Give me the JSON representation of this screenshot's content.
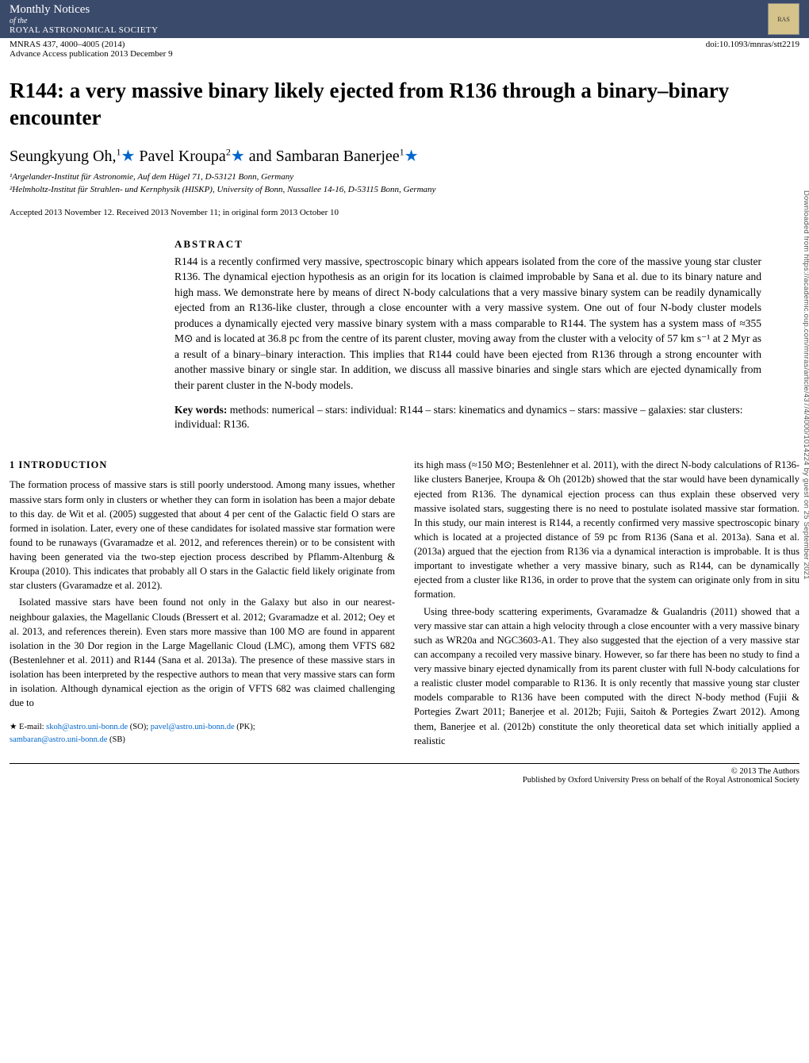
{
  "header": {
    "journal_name": "Monthly Notices",
    "journal_of": "of the",
    "journal_society": "ROYAL ASTRONOMICAL SOCIETY",
    "volume_line": "MNRAS 437, 4000–4005 (2014)",
    "advance_line": "Advance Access publication 2013 December 9",
    "doi": "doi:10.1093/mnras/stt2219",
    "logo_alt": "RAS"
  },
  "title": "R144: a very massive binary likely ejected from R136 through a binary–binary encounter",
  "authors_html": "Seungkyung Oh,",
  "author1": "Seungkyung Oh,",
  "author1_sup": "1",
  "author2": " Pavel Kroupa",
  "author2_sup": "2",
  "author3": " and Sambaran Banerjee",
  "author3_sup": "1",
  "star": "★",
  "affil1": "¹Argelander-Institut für Astronomie, Auf dem Hügel 71, D-53121 Bonn, Germany",
  "affil2": "²Helmholtz-Institut für Strahlen- und Kernphysik (HISKP), University of Bonn, Nussallee 14-16, D-53115 Bonn, Germany",
  "dates": "Accepted 2013 November 12. Received 2013 November 11; in original form 2013 October 10",
  "abstract_head": "ABSTRACT",
  "abstract_text": "R144 is a recently confirmed very massive, spectroscopic binary which appears isolated from the core of the massive young star cluster R136. The dynamical ejection hypothesis as an origin for its location is claimed improbable by Sana et al. due to its binary nature and high mass. We demonstrate here by means of direct N-body calculations that a very massive binary system can be readily dynamically ejected from an R136-like cluster, through a close encounter with a very massive system. One out of four N-body cluster models produces a dynamically ejected very massive binary system with a mass comparable to R144. The system has a system mass of ≈355 M⊙ and is located at 36.8 pc from the centre of its parent cluster, moving away from the cluster with a velocity of 57 km s⁻¹ at 2 Myr as a result of a binary–binary interaction. This implies that R144 could have been ejected from R136 through a strong encounter with another massive binary or single star. In addition, we discuss all massive binaries and single stars which are ejected dynamically from their parent cluster in the N-body models.",
  "keywords_label": "Key words:",
  "keywords_text": " methods: numerical – stars: individual: R144 – stars: kinematics and dynamics – stars: massive – galaxies: star clusters: individual: R136.",
  "section1_head": "1 INTRODUCTION",
  "col1_p1": "The formation process of massive stars is still poorly understood. Among many issues, whether massive stars form only in clusters or whether they can form in isolation has been a major debate to this day. de Wit et al. (2005) suggested that about 4 per cent of the Galactic field O stars are formed in isolation. Later, every one of these candidates for isolated massive star formation were found to be runaways (Gvaramadze et al. 2012, and references therein) or to be consistent with having been generated via the two-step ejection process described by Pflamm-Altenburg & Kroupa (2010). This indicates that probably all O stars in the Galactic field likely originate from star clusters (Gvaramadze et al. 2012).",
  "col1_p2": "Isolated massive stars have been found not only in the Galaxy but also in our nearest-neighbour galaxies, the Magellanic Clouds (Bressert et al. 2012; Gvaramadze et al. 2012; Oey et al. 2013, and references therein). Even stars more massive than 100 M⊙ are found in apparent isolation in the 30 Dor region in the Large Magellanic Cloud (LMC), among them VFTS 682 (Bestenlehner et al. 2011) and R144 (Sana et al. 2013a). The presence of these massive stars in isolation has been interpreted by the respective authors to mean that very massive stars can form in isolation. Although dynamical ejection as the origin of VFTS 682 was claimed challenging due to",
  "col2_p1": "its high mass (≈150 M⊙; Bestenlehner et al. 2011), with the direct N-body calculations of R136-like clusters Banerjee, Kroupa & Oh (2012b) showed that the star would have been dynamically ejected from R136. The dynamical ejection process can thus explain these observed very massive isolated stars, suggesting there is no need to postulate isolated massive star formation. In this study, our main interest is R144, a recently confirmed very massive spectroscopic binary which is located at a projected distance of 59 pc from R136 (Sana et al. 2013a). Sana et al. (2013a) argued that the ejection from R136 via a dynamical interaction is improbable. It is thus important to investigate whether a very massive binary, such as R144, can be dynamically ejected from a cluster like R136, in order to prove that the system can originate only from in situ formation.",
  "col2_p2": "Using three-body scattering experiments, Gvaramadze & Gualandris (2011) showed that a very massive star can attain a high velocity through a close encounter with a very massive binary such as WR20a and NGC3603-A1. They also suggested that the ejection of a very massive star can accompany a recoiled very massive binary. However, so far there has been no study to find a very massive binary ejected dynamically from its parent cluster with full N-body calculations for a realistic cluster model comparable to R136. It is only recently that massive young star cluster models comparable to R136 have been computed with the direct N-body method (Fujii & Portegies Zwart 2011; Banerjee et al. 2012b; Fujii, Saitoh & Portegies Zwart 2012). Among them, Banerjee et al. (2012b) constitute the only theoretical data set which initially applied a realistic",
  "footnote_star": "★",
  "footnote_text": " E-mail: ",
  "email1": "skoh@astro.uni-bonn.de",
  "email1_who": " (SO); ",
  "email2": "pavel@astro.uni-bonn.de",
  "email2_who": " (PK); ",
  "email3": "sambaran@astro.uni-bonn.de",
  "email3_who": " (SB)",
  "footer_c": "© 2013 The Authors",
  "footer_pub": "Published by Oxford University Press on behalf of the Royal Astronomical Society",
  "side": "Downloaded from https://academic.oup.com/mnras/article/437/4/4000/1014224 by guest on 25 September 2021"
}
